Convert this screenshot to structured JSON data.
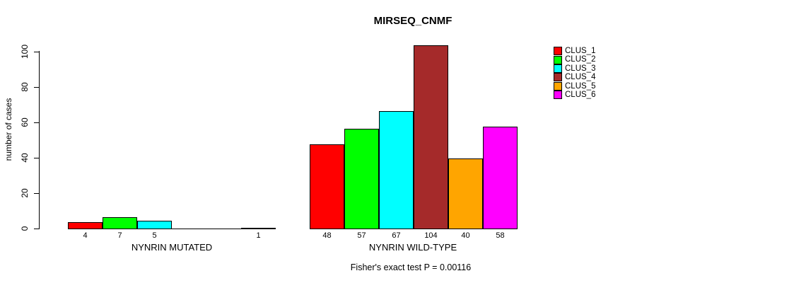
{
  "chart_data": {
    "type": "bar",
    "title": "MIRSEQ_CNMF",
    "ylabel": "number of cases",
    "ylim": [
      0,
      100
    ],
    "yticks": [
      0,
      20,
      40,
      60,
      80,
      100
    ],
    "grid": false,
    "legend": {
      "position": "right",
      "items": [
        {
          "label": "CLUS_1",
          "color": "#ff0000"
        },
        {
          "label": "CLUS_2",
          "color": "#00ff00"
        },
        {
          "label": "CLUS_3",
          "color": "#00ffff"
        },
        {
          "label": "CLUS_4",
          "color": "#a52a2a"
        },
        {
          "label": "CLUS_5",
          "color": "#ffa500"
        },
        {
          "label": "CLUS_6",
          "color": "#ff00ff"
        }
      ]
    },
    "groups": [
      {
        "label": "NYNRIN MUTATED",
        "values": [
          4,
          7,
          5,
          0,
          0,
          1
        ]
      },
      {
        "label": "NYNRIN WILD-TYPE",
        "values": [
          48,
          57,
          67,
          104,
          40,
          58
        ]
      }
    ],
    "bar_value_labels_shown": true,
    "caption": "Fisher's exact test P = 0.00116"
  }
}
